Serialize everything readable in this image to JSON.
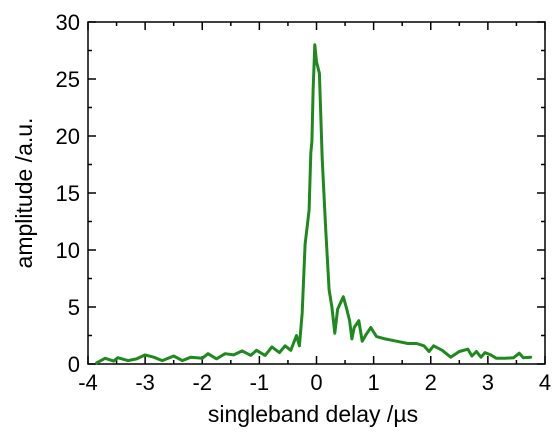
{
  "chart_data": {
    "type": "line",
    "title": "",
    "xlabel": "singleband delay /µs",
    "ylabel": "amplitude /a.u.",
    "xlim": [
      -4,
      4
    ],
    "ylim": [
      0,
      30
    ],
    "x_ticks": [
      -4,
      -3,
      -2,
      -1,
      0,
      1,
      2,
      3,
      4
    ],
    "y_ticks": [
      0,
      5,
      10,
      15,
      20,
      25,
      30
    ],
    "x_tick_labels": [
      "-4",
      "-3",
      "-2",
      "-1",
      "0",
      "1",
      "2",
      "3",
      "4"
    ],
    "y_tick_labels": [
      "0",
      "5",
      "10",
      "15",
      "20",
      "25",
      "30"
    ],
    "grid": false,
    "series": [
      {
        "color": "#1e8a1e",
        "points": [
          [
            -3.85,
            0.1
          ],
          [
            -3.7,
            0.5
          ],
          [
            -3.55,
            0.25
          ],
          [
            -3.48,
            0.55
          ],
          [
            -3.3,
            0.3
          ],
          [
            -3.15,
            0.45
          ],
          [
            -3.0,
            0.8
          ],
          [
            -2.85,
            0.6
          ],
          [
            -2.7,
            0.3
          ],
          [
            -2.5,
            0.7
          ],
          [
            -2.35,
            0.3
          ],
          [
            -2.2,
            0.6
          ],
          [
            -2.0,
            0.5
          ],
          [
            -1.9,
            0.9
          ],
          [
            -1.75,
            0.45
          ],
          [
            -1.6,
            0.9
          ],
          [
            -1.45,
            0.8
          ],
          [
            -1.3,
            1.15
          ],
          [
            -1.15,
            0.75
          ],
          [
            -1.05,
            1.2
          ],
          [
            -0.9,
            0.75
          ],
          [
            -0.78,
            1.5
          ],
          [
            -0.65,
            1.0
          ],
          [
            -0.55,
            1.6
          ],
          [
            -0.45,
            1.2
          ],
          [
            -0.35,
            2.5
          ],
          [
            -0.3,
            1.6
          ],
          [
            -0.25,
            4.5
          ],
          [
            -0.2,
            10.5
          ],
          [
            -0.13,
            13.5
          ],
          [
            -0.1,
            18.5
          ],
          [
            -0.08,
            19.5
          ],
          [
            -0.06,
            24.0
          ],
          [
            -0.03,
            28.0
          ],
          [
            0.0,
            26.5
          ],
          [
            0.05,
            25.5
          ],
          [
            0.1,
            18.0
          ],
          [
            0.16,
            12.0
          ],
          [
            0.22,
            6.5
          ],
          [
            0.27,
            5.0
          ],
          [
            0.32,
            2.7
          ],
          [
            0.37,
            4.8
          ],
          [
            0.47,
            5.9
          ],
          [
            0.53,
            4.8
          ],
          [
            0.58,
            3.8
          ],
          [
            0.62,
            2.2
          ],
          [
            0.66,
            3.2
          ],
          [
            0.74,
            3.8
          ],
          [
            0.8,
            2.0
          ],
          [
            0.87,
            2.6
          ],
          [
            0.95,
            3.2
          ],
          [
            1.05,
            2.4
          ],
          [
            1.2,
            2.2
          ],
          [
            1.4,
            2.0
          ],
          [
            1.6,
            1.8
          ],
          [
            1.75,
            1.8
          ],
          [
            1.88,
            1.6
          ],
          [
            1.97,
            1.1
          ],
          [
            2.05,
            1.6
          ],
          [
            2.2,
            1.2
          ],
          [
            2.35,
            0.6
          ],
          [
            2.5,
            1.1
          ],
          [
            2.65,
            1.3
          ],
          [
            2.72,
            0.7
          ],
          [
            2.8,
            1.1
          ],
          [
            2.88,
            0.6
          ],
          [
            2.95,
            1.0
          ],
          [
            3.05,
            0.8
          ],
          [
            3.15,
            0.5
          ],
          [
            3.3,
            0.5
          ],
          [
            3.45,
            0.55
          ],
          [
            3.55,
            0.95
          ],
          [
            3.62,
            0.55
          ],
          [
            3.75,
            0.6
          ]
        ]
      }
    ]
  }
}
